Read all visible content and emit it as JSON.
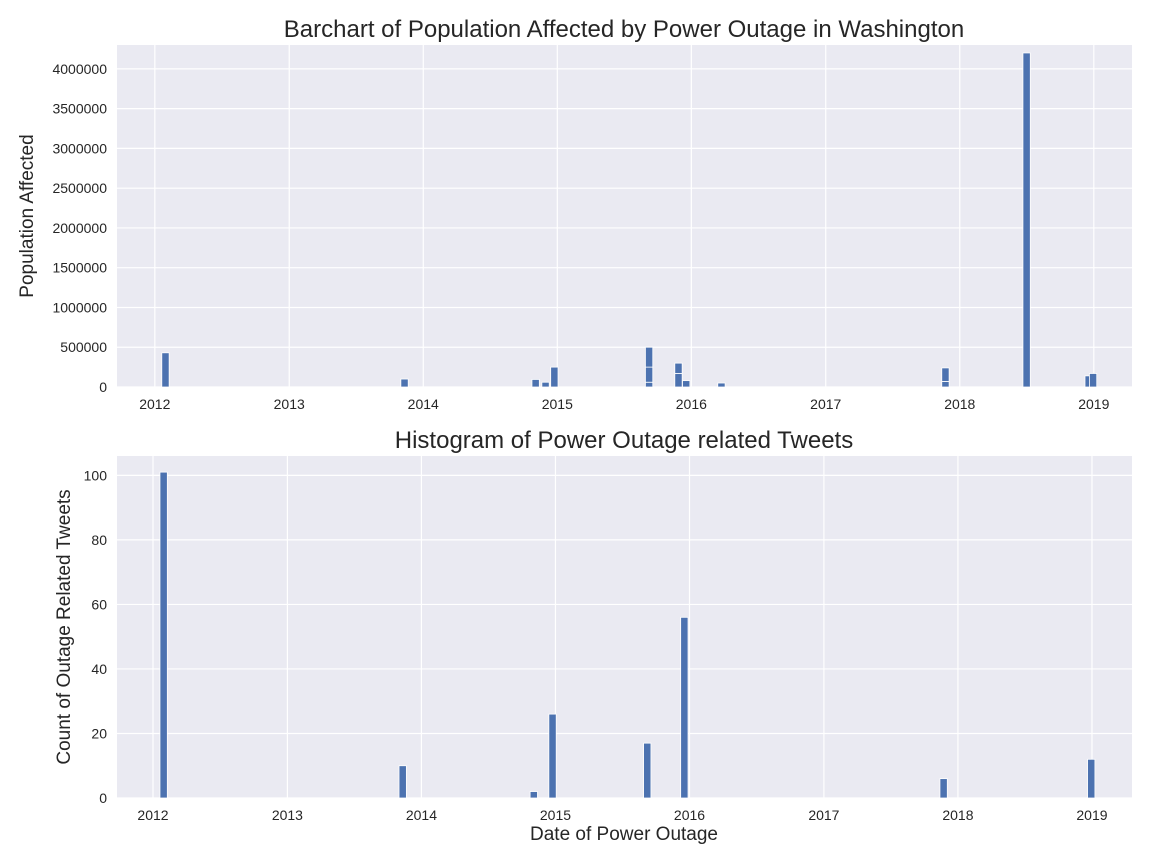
{
  "colors": {
    "bar": "#4c72b0",
    "plot_background": "#eaeaf2",
    "grid": "#ffffff"
  },
  "chart_data": [
    {
      "type": "bar",
      "title": "Barchart of Population Affected by Power Outage in Washington",
      "xlabel": "",
      "ylabel": "Population Affected",
      "x_ticks": [
        "2012",
        "2013",
        "2014",
        "2015",
        "2016",
        "2017",
        "2018",
        "2019"
      ],
      "y_ticks": [
        "0",
        "500000",
        "1000000",
        "1500000",
        "2000000",
        "2500000",
        "3000000",
        "3500000",
        "4000000"
      ],
      "ylim": [
        0,
        4300000
      ],
      "xlim": [
        "2011-09-20",
        "2019-04-15"
      ],
      "grid": true,
      "legend": "none",
      "bars": [
        {
          "date": "2012-01-20",
          "stack": [
            430000
          ]
        },
        {
          "date": "2013-11-01",
          "stack": [
            100000
          ]
        },
        {
          "date": "2014-10-24",
          "stack": [
            95000
          ]
        },
        {
          "date": "2014-11-20",
          "stack": [
            60000
          ]
        },
        {
          "date": "2014-12-14",
          "stack": [
            250000
          ]
        },
        {
          "date": "2015-08-29",
          "stack": [
            60000,
            190000,
            250000
          ]
        },
        {
          "date": "2015-11-17",
          "stack": [
            170000,
            130000
          ]
        },
        {
          "date": "2015-12-08",
          "stack": [
            80000
          ]
        },
        {
          "date": "2016-03-13",
          "stack": [
            50000
          ]
        },
        {
          "date": "2017-11-13",
          "stack": [
            70000,
            170000
          ]
        },
        {
          "date": "2018-06-22",
          "stack": [
            4200000
          ]
        },
        {
          "date": "2018-12-08",
          "stack": [
            140000
          ]
        },
        {
          "date": "2018-12-20",
          "stack": [
            170000
          ]
        }
      ]
    },
    {
      "type": "bar",
      "title": "Histogram of Power Outage related Tweets",
      "xlabel": "Date of Power Outage",
      "ylabel": "Count of Outage Related Tweets",
      "x_ticks": [
        "2012",
        "2013",
        "2014",
        "2015",
        "2016",
        "2017",
        "2018",
        "2019"
      ],
      "y_ticks": [
        "0",
        "20",
        "40",
        "60",
        "80",
        "100"
      ],
      "ylim": [
        0,
        106
      ],
      "xlim": [
        "2011-09-25",
        "2019-04-20"
      ],
      "grid": true,
      "legend": "none",
      "bars": [
        {
          "date": "2012-01-20",
          "stack": [
            101
          ]
        },
        {
          "date": "2013-11-01",
          "stack": [
            10
          ]
        },
        {
          "date": "2014-10-24",
          "stack": [
            2
          ]
        },
        {
          "date": "2014-12-14",
          "stack": [
            26
          ]
        },
        {
          "date": "2015-08-29",
          "stack": [
            17
          ]
        },
        {
          "date": "2015-12-08",
          "stack": [
            56
          ]
        },
        {
          "date": "2017-11-13",
          "stack": [
            6
          ]
        },
        {
          "date": "2018-12-20",
          "stack": [
            12
          ]
        }
      ]
    }
  ]
}
